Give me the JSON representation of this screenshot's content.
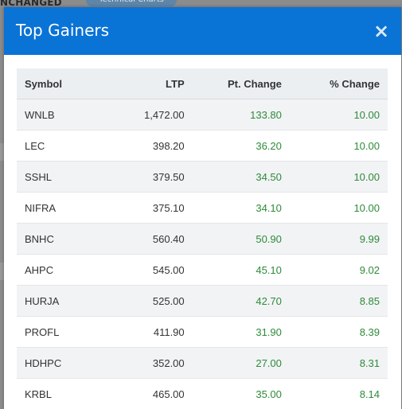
{
  "background": {
    "label_fragment": "NCHANGED",
    "pill_label": "Technical Charts"
  },
  "modal": {
    "title": "Top Gainers",
    "close_glyph": "×",
    "accent_color": "#0a73d6",
    "gain_color": "#2e8b3a"
  },
  "table": {
    "headers": {
      "symbol": "Symbol",
      "ltp": "LTP",
      "pt_change": "Pt. Change",
      "pct_change": "% Change"
    },
    "rows": [
      {
        "symbol": "WNLB",
        "ltp": "1,472.00",
        "pt_change": "133.80",
        "pct_change": "10.00"
      },
      {
        "symbol": "LEC",
        "ltp": "398.20",
        "pt_change": "36.20",
        "pct_change": "10.00"
      },
      {
        "symbol": "SSHL",
        "ltp": "379.50",
        "pt_change": "34.50",
        "pct_change": "10.00"
      },
      {
        "symbol": "NIFRA",
        "ltp": "375.10",
        "pt_change": "34.10",
        "pct_change": "10.00"
      },
      {
        "symbol": "BNHC",
        "ltp": "560.40",
        "pt_change": "50.90",
        "pct_change": "9.99"
      },
      {
        "symbol": "AHPC",
        "ltp": "545.00",
        "pt_change": "45.10",
        "pct_change": "9.02"
      },
      {
        "symbol": "HURJA",
        "ltp": "525.00",
        "pt_change": "42.70",
        "pct_change": "8.85"
      },
      {
        "symbol": "PROFL",
        "ltp": "411.90",
        "pt_change": "31.90",
        "pct_change": "8.39"
      },
      {
        "symbol": "HDHPC",
        "ltp": "352.00",
        "pt_change": "27.00",
        "pct_change": "8.31"
      },
      {
        "symbol": "KRBL",
        "ltp": "465.00",
        "pt_change": "35.00",
        "pct_change": "8.14"
      }
    ]
  }
}
